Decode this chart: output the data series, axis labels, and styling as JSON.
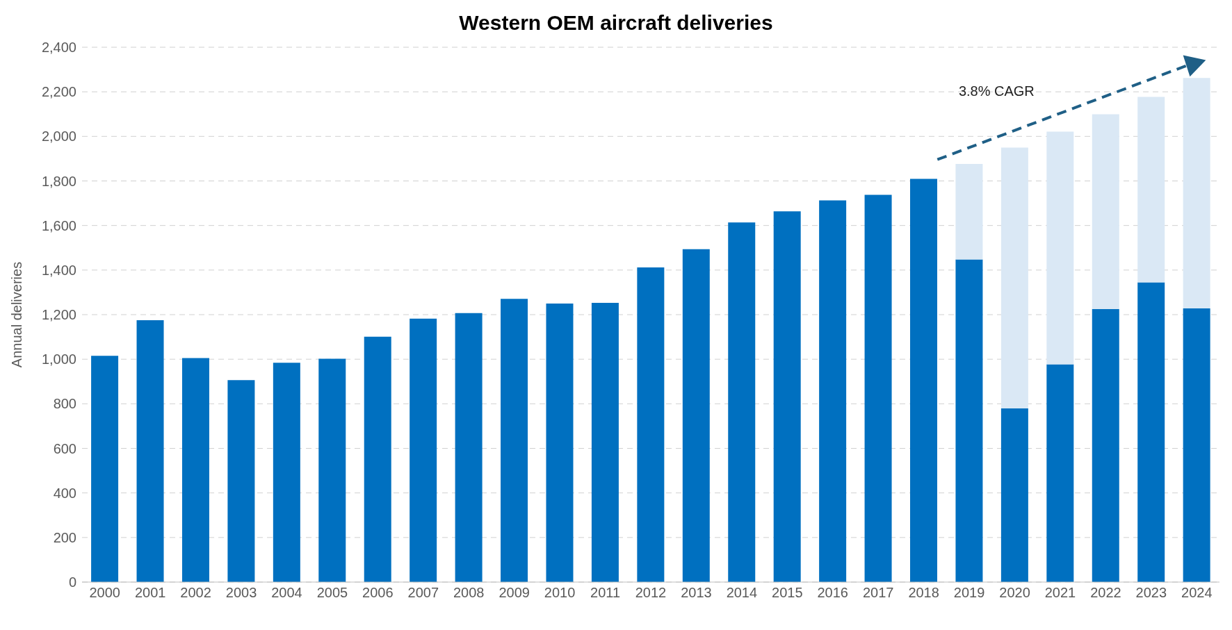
{
  "chart_data": {
    "type": "bar",
    "title": "Western OEM aircraft deliveries",
    "ylabel": "Annual deliveries",
    "categories": [
      "2000",
      "2001",
      "2002",
      "2003",
      "2004",
      "2005",
      "2006",
      "2007",
      "2008",
      "2009",
      "2010",
      "2011",
      "2012",
      "2013",
      "2014",
      "2015",
      "2016",
      "2017",
      "2018",
      "2019",
      "2020",
      "2021",
      "2022",
      "2023",
      "2024"
    ],
    "stacked": true,
    "series": [
      {
        "color": "#0070c0",
        "values": [
          1015,
          1175,
          1005,
          906,
          984,
          1002,
          1101,
          1182,
          1207,
          1271,
          1250,
          1253,
          1412,
          1494,
          1614,
          1664,
          1713,
          1738,
          1809,
          1448,
          779,
          977,
          1225,
          1345,
          1228
        ]
      },
      {
        "color": "#dae8f5",
        "values": [
          null,
          null,
          null,
          null,
          null,
          null,
          null,
          null,
          null,
          null,
          null,
          null,
          null,
          null,
          null,
          null,
          null,
          null,
          null,
          428,
          1171,
          1044,
          874,
          832,
          1034
        ]
      }
    ],
    "ylim": [
      0,
      2400
    ],
    "yticks": [
      0,
      200,
      400,
      600,
      800,
      {
        "value": 1000,
        "label": "1,000"
      },
      {
        "value": 1200,
        "label": "1,200"
      },
      {
        "value": 1400,
        "label": "1,400"
      },
      {
        "value": 1600,
        "label": "1,600"
      },
      {
        "value": 1800,
        "label": "1,800"
      },
      {
        "value": 2000,
        "label": "2,000"
      },
      {
        "value": 2200,
        "label": "2,200"
      },
      {
        "value": 2400,
        "label": "2,400"
      }
    ],
    "grid": "y",
    "annotations": [
      "3.8% CAGR"
    ]
  }
}
